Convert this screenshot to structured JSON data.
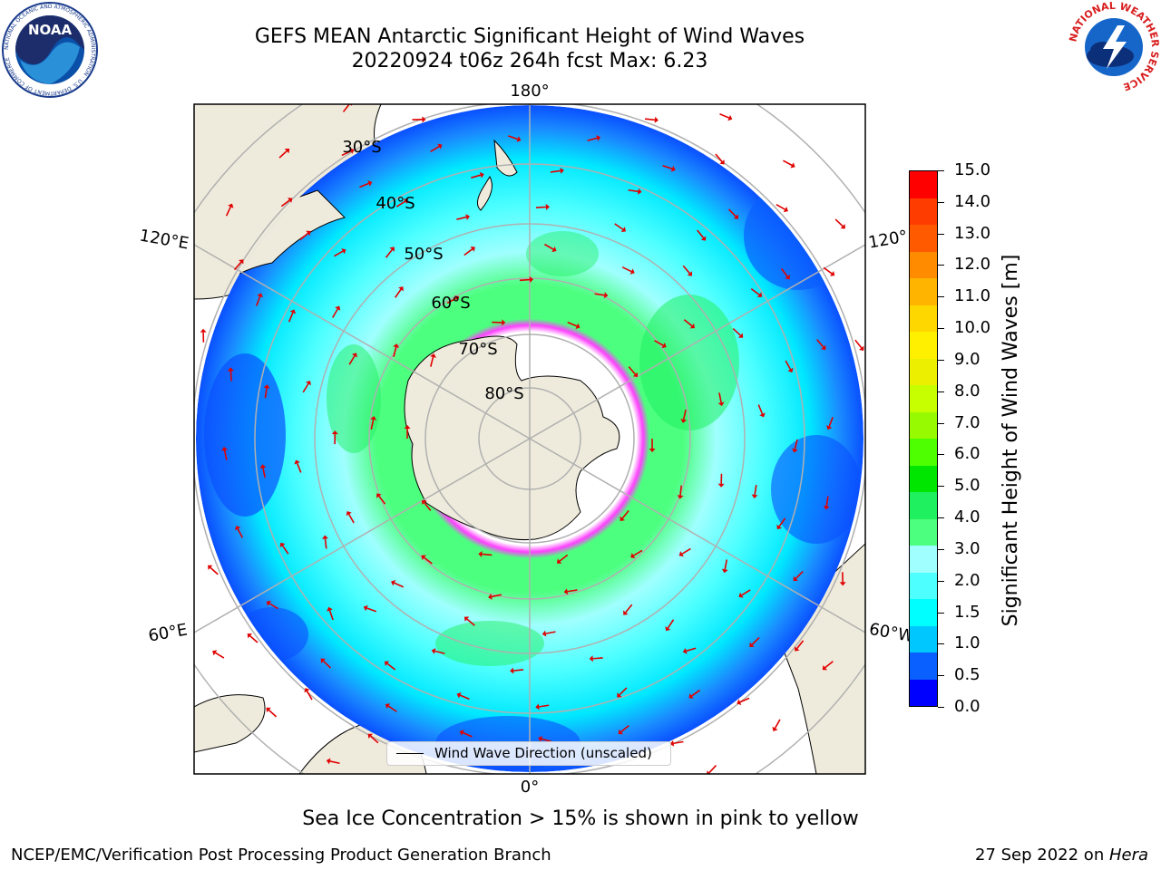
{
  "header": {
    "title_line1": "GEFS MEAN Antarctic Significant Height of Wind Waves",
    "title_line2": "20220924 t06z 264h fcst   Max: 6.23"
  },
  "logos": {
    "noaa_text": "NOAA",
    "noaa_ring_text": "NATIONAL OCEANIC AND ATMOSPHERIC ADMINISTRATION · U.S. DEPARTMENT OF COMMERCE",
    "nws_ring_text": "NATIONAL WEATHER SERVICE"
  },
  "map": {
    "projection": "south-polar-stereographic",
    "lon_labels": [
      "180°",
      "120°E",
      "120°",
      "60°E",
      "60°W",
      "0°"
    ],
    "lat_labels": [
      "30°S",
      "40°S",
      "50°S",
      "60°S",
      "70°S",
      "80°S"
    ],
    "field": "Significant Height of Wind Waves",
    "max_value": 6.23
  },
  "colorbar": {
    "label": "Significant Height of Wind Waves [m]",
    "ticks": [
      "0.0",
      "0.5",
      "1.0",
      "1.5",
      "2.0",
      "3.0",
      "4.0",
      "5.0",
      "6.0",
      "7.0",
      "8.0",
      "9.0",
      "10.0",
      "11.0",
      "12.0",
      "13.0",
      "14.0",
      "15.0"
    ],
    "colors": [
      "#0000ff",
      "#0a60ff",
      "#00c8ff",
      "#00ffff",
      "#4dffff",
      "#a0ffff",
      "#4dff7f",
      "#1ff060",
      "#00e600",
      "#4dff00",
      "#98fa00",
      "#c8ff00",
      "#ecf000",
      "#fff000",
      "#ffd700",
      "#ffb400",
      "#ff8c00",
      "#ff5a00",
      "#ff3c00",
      "#ff0000"
    ]
  },
  "legend": {
    "label": "Wind Wave Direction (unscaled)"
  },
  "subtitle": "Sea Ice Concentration > 15% is shown in pink to yellow",
  "footer": {
    "left": "NCEP/EMC/Verification Post Processing Product Generation Branch",
    "right_prefix": "27 Sep 2022 on ",
    "right_machine": "Hera"
  }
}
